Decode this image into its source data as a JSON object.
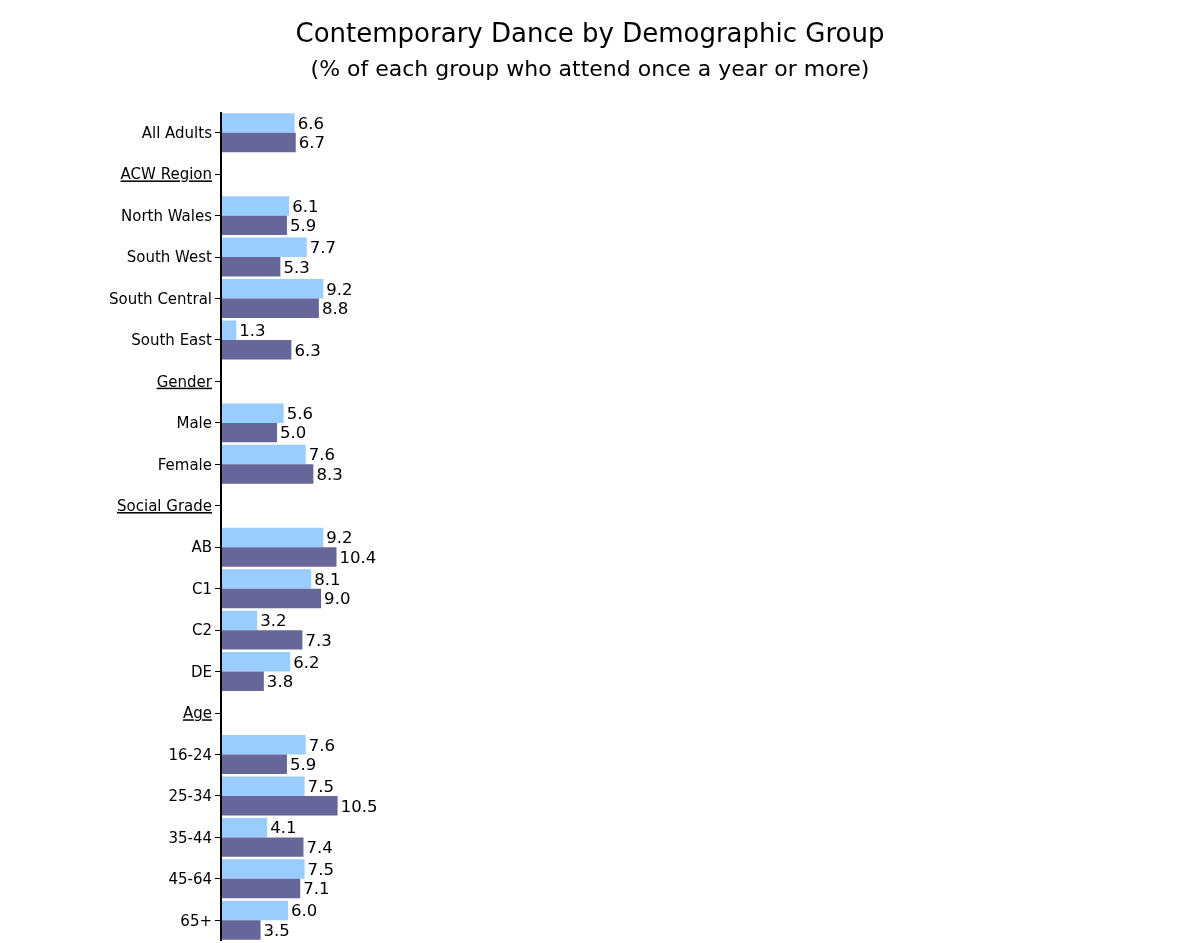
{
  "chart_data": {
    "type": "bar",
    "title": "Contemporary Dance by Demographic Group",
    "subtitle": "(% of each group who attend once a year or more)",
    "categories": [
      "All Adults",
      "ACW Region",
      "North Wales",
      "South West",
      "South Central",
      "South East",
      "Gender",
      "Male",
      "Female",
      "Social Grade",
      "AB",
      "C1",
      "C2",
      "DE",
      "Age",
      "16-24",
      "25-34",
      "35-44",
      "45-64",
      "65+"
    ],
    "series": [
      {
        "color": "#99ccff",
        "values": [
          6.6,
          null,
          6.1,
          7.7,
          9.2,
          1.3,
          null,
          5.6,
          7.6,
          null,
          9.2,
          8.1,
          3.2,
          6.2,
          null,
          7.6,
          7.5,
          4.1,
          7.5,
          6.0
        ],
        "value_labels": [
          "6.6",
          null,
          "6.1",
          "7.7",
          "9.2",
          "1.3",
          null,
          "5.6",
          "7.6",
          null,
          "9.2",
          "8.1",
          "3.2",
          "6.2",
          null,
          "7.6",
          "7.5",
          "4.1",
          "7.5",
          "6.0"
        ]
      },
      {
        "color": "#666699",
        "values": [
          6.7,
          null,
          5.9,
          5.3,
          8.8,
          6.3,
          null,
          5.0,
          8.3,
          null,
          10.4,
          9.0,
          7.3,
          3.8,
          null,
          5.9,
          10.5,
          7.4,
          7.1,
          3.5
        ],
        "value_labels": [
          "6.7",
          null,
          "5.9",
          "5.3",
          "8.8",
          "6.3",
          null,
          "5.0",
          "8.3",
          null,
          "10.4",
          "9.0",
          "7.3",
          "3.8",
          null,
          "5.9",
          "10.5",
          "7.4",
          "7.1",
          "3.5"
        ]
      }
    ],
    "orientation": "horizontal"
  }
}
